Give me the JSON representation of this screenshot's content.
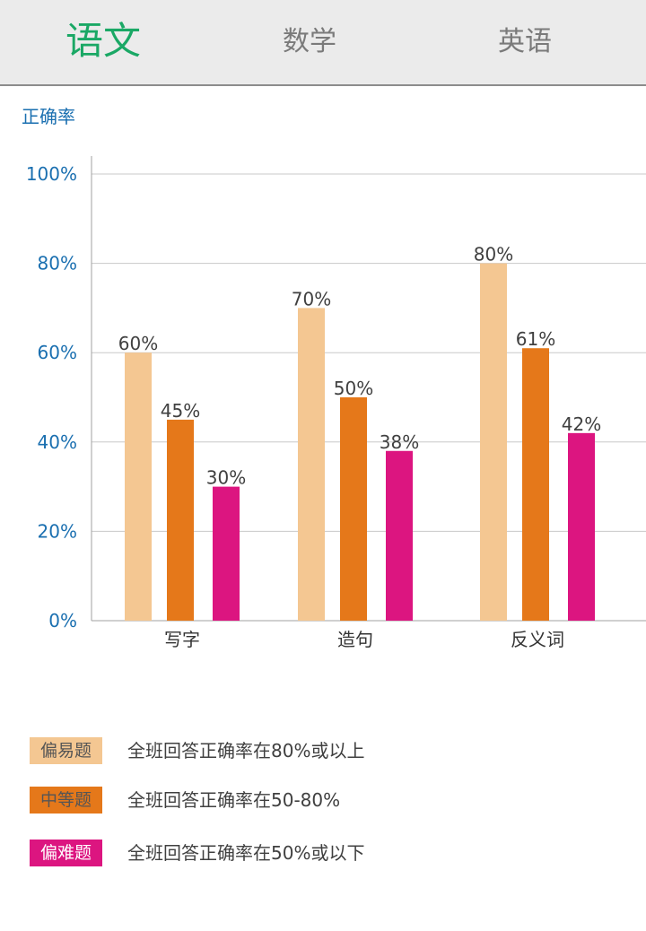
{
  "tabs": [
    {
      "label": "语文",
      "active": true
    },
    {
      "label": "数学",
      "active": false
    },
    {
      "label": "英语",
      "active": false
    }
  ],
  "colors": {
    "active_tab": "#1aa865",
    "inactive_tab": "#7a7a7a",
    "axis_text": "#1a6fb0",
    "easy": "#f4c792",
    "medium": "#e5781a",
    "hard": "#dc1580"
  },
  "chart_data": {
    "type": "bar",
    "ylabel": "正确率",
    "xlabel": "",
    "ylim": [
      0,
      100
    ],
    "grid": true,
    "categories": [
      "写字",
      "造句",
      "反义词"
    ],
    "yticks": [
      "0%",
      "20%",
      "40%",
      "60%",
      "80%",
      "100%"
    ],
    "series": [
      {
        "name": "偏易题",
        "color": "#f4c792",
        "values": [
          60,
          70,
          80
        ],
        "labels": [
          "60%",
          "70%",
          "80%"
        ]
      },
      {
        "name": "中等题",
        "color": "#e5781a",
        "values": [
          45,
          50,
          61
        ],
        "labels": [
          "45%",
          "50%",
          "61%"
        ]
      },
      {
        "name": "偏难题",
        "color": "#dc1580",
        "values": [
          30,
          38,
          42
        ],
        "labels": [
          "30%",
          "38%",
          "42%"
        ]
      }
    ]
  },
  "legend": [
    {
      "label": "偏易题",
      "description": "全班回答正确率在80%或以上",
      "color": "#f4c792",
      "text_color": "#555555"
    },
    {
      "label": "中等题",
      "description": "全班回答正确率在50-80%",
      "color": "#e5781a",
      "text_color": "#555555"
    },
    {
      "label": "偏难题",
      "description": "全班回答正确率在50%或以下",
      "color": "#dc1580",
      "text_color": "#ffffff"
    }
  ]
}
